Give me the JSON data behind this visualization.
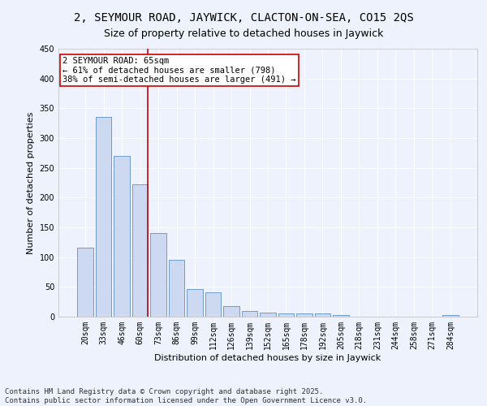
{
  "title": "2, SEYMOUR ROAD, JAYWICK, CLACTON-ON-SEA, CO15 2QS",
  "subtitle": "Size of property relative to detached houses in Jaywick",
  "xlabel": "Distribution of detached houses by size in Jaywick",
  "ylabel": "Number of detached properties",
  "categories": [
    "20sqm",
    "33sqm",
    "46sqm",
    "60sqm",
    "73sqm",
    "86sqm",
    "99sqm",
    "112sqm",
    "126sqm",
    "139sqm",
    "152sqm",
    "165sqm",
    "178sqm",
    "192sqm",
    "205sqm",
    "218sqm",
    "231sqm",
    "244sqm",
    "258sqm",
    "271sqm",
    "284sqm"
  ],
  "values": [
    116,
    336,
    270,
    222,
    140,
    95,
    46,
    41,
    18,
    10,
    7,
    5,
    6,
    5,
    3,
    0,
    0,
    0,
    0,
    0,
    3
  ],
  "bar_color": "#ccd9f0",
  "bar_edge_color": "#5b8fcc",
  "background_color": "#eef2fc",
  "grid_color": "#ffffff",
  "annotation_text": "2 SEYMOUR ROAD: 65sqm\n← 61% of detached houses are smaller (798)\n38% of semi-detached houses are larger (491) →",
  "annotation_box_color": "#ffffff",
  "annotation_box_edge": "#cc0000",
  "vline_color": "#cc0000",
  "vline_position": 3.425,
  "ylim": [
    0,
    450
  ],
  "yticks": [
    0,
    50,
    100,
    150,
    200,
    250,
    300,
    350,
    400,
    450
  ],
  "footer": "Contains HM Land Registry data © Crown copyright and database right 2025.\nContains public sector information licensed under the Open Government Licence v3.0.",
  "title_fontsize": 10,
  "subtitle_fontsize": 9,
  "axis_label_fontsize": 8,
  "tick_fontsize": 7,
  "annotation_fontsize": 7.5,
  "footer_fontsize": 6.5
}
